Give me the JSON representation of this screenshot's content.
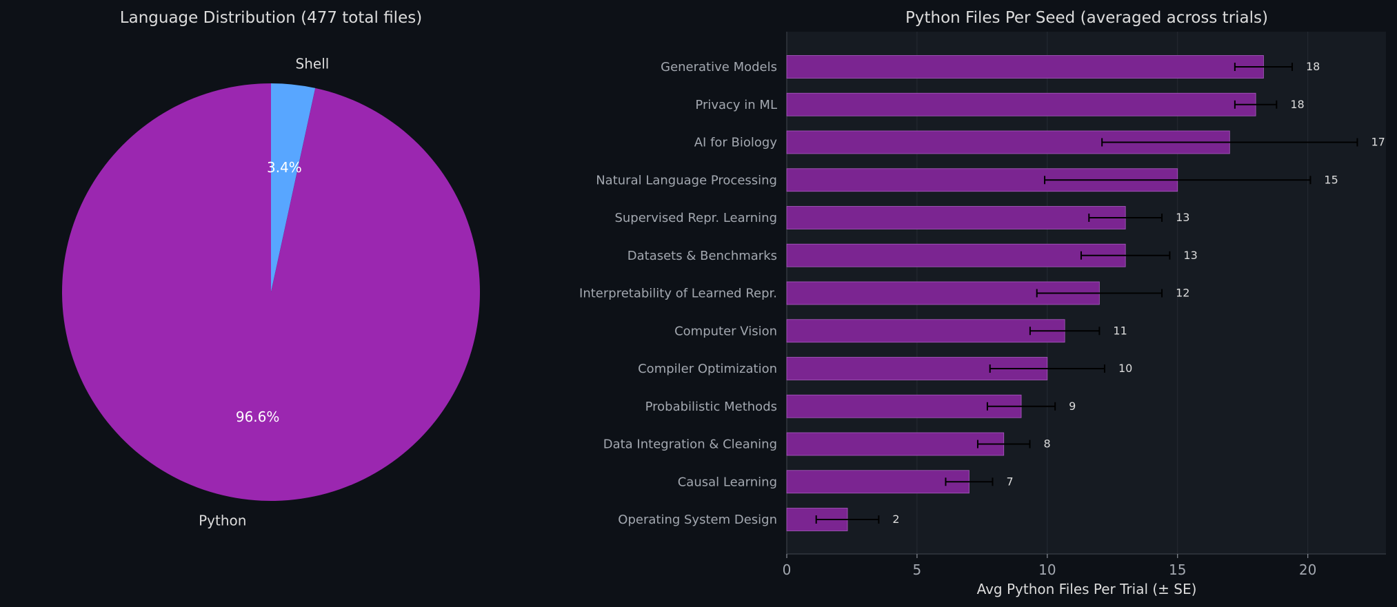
{
  "chart_data": [
    {
      "type": "pie",
      "title": "Language Distribution (477 total files)",
      "labels": [
        "Shell",
        "Python"
      ],
      "values": [
        3.4,
        96.6
      ],
      "value_labels": [
        "3.4%",
        "96.6%"
      ],
      "colors": [
        "#58a6ff",
        "#9b27b0"
      ],
      "start_angle": 90,
      "direction": "clockwise"
    },
    {
      "type": "bar",
      "orientation": "horizontal",
      "title": "Python Files Per Seed (averaged across trials)",
      "xlabel": "Avg Python Files Per Trial (± SE)",
      "ylabel": "",
      "xlim": [
        0,
        23
      ],
      "xticks": [
        0,
        5,
        10,
        15,
        20
      ],
      "grid": true,
      "bar_color": "#7b2591",
      "error_color": "#000000",
      "categories": [
        "Generative Models",
        "Privacy in ML",
        "AI for Biology",
        "Natural Language Processing",
        "Supervised Repr. Learning",
        "Datasets & Benchmarks",
        "Interpretability of Learned Repr.",
        "Computer Vision",
        "Compiler Optimization",
        "Probabilistic Methods",
        "Data Integration & Cleaning",
        "Causal Learning",
        "Operating System Design"
      ],
      "values": [
        18.3,
        18.0,
        17.0,
        15.0,
        13.0,
        13.0,
        12.0,
        10.67,
        10.0,
        9.0,
        8.33,
        7.0,
        2.33
      ],
      "errors": [
        1.1,
        0.8,
        4.9,
        5.1,
        1.4,
        1.7,
        2.4,
        1.33,
        2.2,
        1.3,
        1.0,
        0.9,
        1.2
      ],
      "value_labels": [
        "18",
        "18",
        "17",
        "15",
        "13",
        "13",
        "12",
        "11",
        "10",
        "9",
        "8",
        "7",
        "2"
      ]
    }
  ]
}
